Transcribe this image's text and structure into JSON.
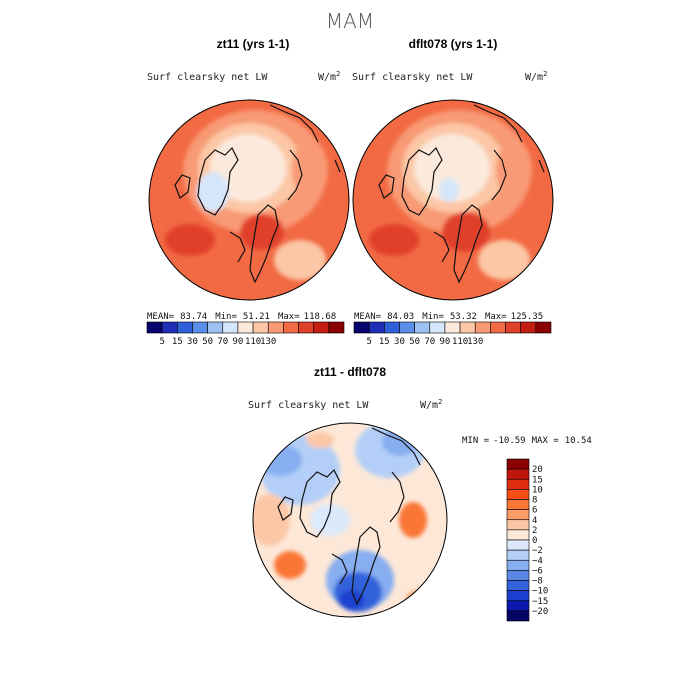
{
  "title": "MAM",
  "chart_data": [
    {
      "type": "heatmap",
      "title": "zt11 (yrs 1-1)",
      "variable": "Surf clearsky net LW",
      "units": "W/m",
      "units_sup": "2",
      "stats": {
        "mean_label": "MEAN=",
        "mean": "83.74",
        "min_label": "Min=",
        "min": "51.21",
        "max_label": "Max=",
        "max": "118.68"
      },
      "colorbar": {
        "levels": [
          5,
          15,
          30,
          50,
          70,
          90,
          110,
          130
        ],
        "tick_labels": [
          "5",
          "15",
          "30",
          "50",
          "70",
          "90",
          "110",
          "130"
        ],
        "colors": [
          "#08036d",
          "#1f2fb8",
          "#2f5fd9",
          "#5b8ee8",
          "#9fc1f2",
          "#d4e6fa",
          "#fbe9dc",
          "#fcc7a6",
          "#f89a74",
          "#f26a44",
          "#e0402a",
          "#c21f12",
          "#8b0000"
        ]
      },
      "projection": "north-polar-stereographic"
    },
    {
      "type": "heatmap",
      "title": "dflt078 (yrs 1-1)",
      "variable": "Surf clearsky net LW",
      "units": "W/m",
      "units_sup": "2",
      "stats": {
        "mean_label": "MEAN=",
        "mean": "84.03",
        "min_label": "Min=",
        "min": "53.32",
        "max_label": "Max=",
        "max": "125.35"
      },
      "colorbar": {
        "levels": [
          5,
          15,
          30,
          50,
          70,
          90,
          110,
          130
        ],
        "tick_labels": [
          "5",
          "15",
          "30",
          "50",
          "70",
          "90",
          "110",
          "130"
        ],
        "colors": [
          "#08036d",
          "#1f2fb8",
          "#2f5fd9",
          "#5b8ee8",
          "#9fc1f2",
          "#d4e6fa",
          "#fbe9dc",
          "#fcc7a6",
          "#f89a74",
          "#f26a44",
          "#e0402a",
          "#c21f12",
          "#8b0000"
        ]
      },
      "projection": "north-polar-stereographic"
    },
    {
      "type": "heatmap",
      "title": "zt11 - dflt078",
      "variable": "Surf clearsky net LW",
      "units": "W/m",
      "units_sup": "2",
      "stats": {
        "min_label": "MIN =",
        "min": "-10.59",
        "max_label": "MAX =",
        "max": "10.54"
      },
      "colorbar": {
        "orientation": "vertical",
        "levels": [
          -20,
          -15,
          -10,
          -8,
          -6,
          -4,
          -2,
          0,
          2,
          4,
          6,
          8,
          10,
          15,
          20
        ],
        "tick_labels": [
          "20",
          "15",
          "10",
          "8",
          "6",
          "4",
          "2",
          "0",
          "−2",
          "−4",
          "−6",
          "−8",
          "−10",
          "−15",
          "−20"
        ],
        "colors_top_to_bottom": [
          "#8b0000",
          "#c0150b",
          "#df2d10",
          "#f24e16",
          "#f97634",
          "#fb9d66",
          "#fcc7a6",
          "#fde8d8",
          "#dbe9fb",
          "#b3cff7",
          "#86aef0",
          "#5a87e6",
          "#3362da",
          "#1c3fcf",
          "#0c17b0",
          "#040563"
        ]
      },
      "projection": "north-polar-stereographic"
    }
  ]
}
